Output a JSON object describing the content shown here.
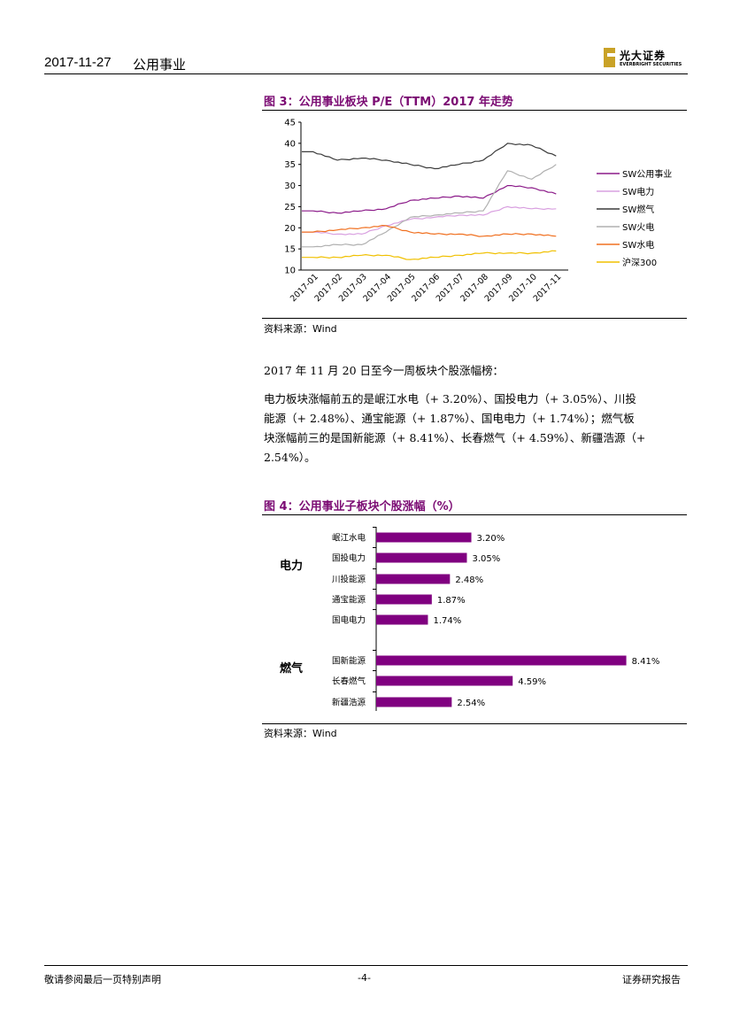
{
  "header": {
    "date": "2017-11-27",
    "sector": "公用事业",
    "logo_cn": "光大证券",
    "logo_en": "EVERBRIGHT SECURITIES"
  },
  "figure3": {
    "title": "图 3：公用事业板块 P/E（TTM）2017 年走势",
    "source": "资料来源：Wind",
    "chart_data": {
      "type": "line",
      "title": "图 3：公用事业板块 P/E（TTM）2017 年走势",
      "x_ticks": [
        "2017-01",
        "2017-02",
        "2017-03",
        "2017-04",
        "2017-05",
        "2017-06",
        "2017-07",
        "2017-08",
        "2017-09",
        "2017-10",
        "2017-11"
      ],
      "ylim": [
        10,
        45
      ],
      "y_ticks": [
        10,
        15,
        20,
        25,
        30,
        35,
        40,
        45
      ],
      "grid": false,
      "legend_position": "right",
      "series": [
        {
          "name": "SW公用事业",
          "color": "#8b1a89",
          "values": [
            24,
            23.5,
            24,
            24.5,
            26.5,
            27,
            27.5,
            27,
            30,
            29.5,
            28
          ]
        },
        {
          "name": "SW电力",
          "color": "#d9a0e0",
          "values": [
            19,
            18.5,
            18.5,
            20.5,
            22,
            22.5,
            23,
            23,
            25,
            24.5,
            24.5
          ]
        },
        {
          "name": "SW燃气",
          "color": "#3c3c3c",
          "values": [
            38,
            36,
            36.5,
            36,
            35,
            34,
            35,
            36,
            40,
            39.5,
            37
          ]
        },
        {
          "name": "SW火电",
          "color": "#b0b0b0",
          "values": [
            15.5,
            16,
            16,
            19,
            22.5,
            23,
            23.5,
            24,
            33.5,
            31.5,
            35
          ]
        },
        {
          "name": "SW水电",
          "color": "#f07020",
          "values": [
            19,
            19.5,
            20,
            20.5,
            19,
            18.5,
            18.5,
            18,
            18.5,
            18.5,
            18
          ]
        },
        {
          "name": "沪深300",
          "color": "#f0c000",
          "values": [
            13,
            13,
            13.5,
            13.5,
            12.5,
            13,
            13.5,
            14,
            14,
            14,
            14.5
          ]
        }
      ]
    }
  },
  "body_text": {
    "heading": "2017 年 11 月 20 日至今一周板块个股涨幅榜：",
    "lines": [
      "电力板块涨幅前五的是岷江水电（+ 3.20%）、国投电力（+ 3.05%）、川投",
      "能源（+ 2.48%）、通宝能源（+ 1.87%）、国电电力（+ 1.74%）；燃气板",
      "块涨幅前三的是国新能源（+ 8.41%）、长春燃气（+ 4.59%）、新疆浩源（+",
      "2.54%）。"
    ]
  },
  "figure4": {
    "title": "图 4：公用事业子板块个股涨幅（%）",
    "source": "资料来源：Wind",
    "chart_data": {
      "type": "bar",
      "orientation": "horizontal",
      "title": "图 4：公用事业子板块个股涨幅（%）",
      "bar_color": "#800080",
      "groups": [
        {
          "name": "电力",
          "categories": [
            "岷江水电",
            "国投电力",
            "川投能源",
            "通宝能源",
            "国电电力"
          ],
          "values": [
            3.2,
            3.05,
            2.48,
            1.87,
            1.74
          ],
          "labels": [
            "3.20%",
            "3.05%",
            "2.48%",
            "1.87%",
            "1.74%"
          ]
        },
        {
          "name": "燃气",
          "categories": [
            "国新能源",
            "长春燃气",
            "新疆浩源"
          ],
          "values": [
            8.41,
            4.59,
            2.54
          ],
          "labels": [
            "8.41%",
            "4.59%",
            "2.54%"
          ]
        }
      ]
    }
  },
  "footer": {
    "left": "敬请参阅最后一页特别声明",
    "center": "-4-",
    "right": "证券研究报告"
  }
}
